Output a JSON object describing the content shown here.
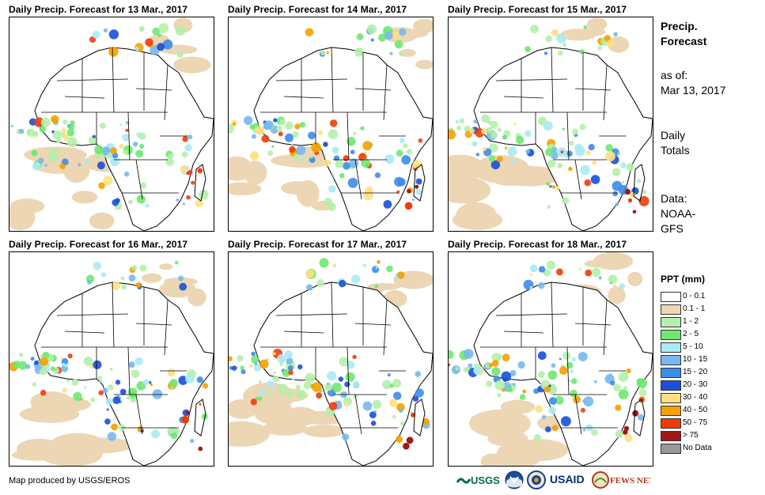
{
  "panels": [
    {
      "title": "Daily Precip. Forecast for 13 Mar., 2017"
    },
    {
      "title": "Daily Precip. Forecast for 14 Mar., 2017"
    },
    {
      "title": "Daily Precip. Forecast for 15 Mar., 2017"
    },
    {
      "title": "Daily Precip. Forecast for 16 Mar., 2017"
    },
    {
      "title": "Daily Precip. Forecast for 17 Mar., 2017"
    },
    {
      "title": "Daily Precip. Forecast for 18 Mar., 2017"
    }
  ],
  "sidebar": {
    "title_line1": "Precip.",
    "title_line2": "Forecast",
    "asof_label": "as of:",
    "asof_date": "Mar 13, 2017",
    "totals_line1": "Daily",
    "totals_line2": "Totals",
    "data_line1": "Data:",
    "data_line2": "NOAA-",
    "data_line3": "GFS"
  },
  "legend": {
    "title": "PPT (mm)",
    "items": [
      {
        "label": "0 - 0.1",
        "color": "#ffffff"
      },
      {
        "label": "0.1 - 1",
        "color": "#ecd6b4"
      },
      {
        "label": "1 - 2",
        "color": "#b4f0a8"
      },
      {
        "label": "2 - 5",
        "color": "#6ee870"
      },
      {
        "label": "5 - 10",
        "color": "#aaeaf4"
      },
      {
        "label": "10 - 15",
        "color": "#78b8f0"
      },
      {
        "label": "15 - 20",
        "color": "#3c8ce8"
      },
      {
        "label": "20 - 30",
        "color": "#1850d8"
      },
      {
        "label": "30 - 40",
        "color": "#ffe080"
      },
      {
        "label": "40 - 50",
        "color": "#f5a000"
      },
      {
        "label": "50 - 75",
        "color": "#f03c0a"
      },
      {
        "label": "> 75",
        "color": "#a01818"
      },
      {
        "label": "No Data",
        "color": "#999999"
      }
    ]
  },
  "footer": {
    "credit": "Map produced by USGS/EROS"
  },
  "logos": [
    {
      "text": "USGS",
      "color": "#006f41"
    },
    {
      "text": "NOAA",
      "color": "#1b4f9c"
    },
    {
      "text": "DOS",
      "color": "#1b3e7a"
    },
    {
      "text": "USAID",
      "color": "#002f6c"
    },
    {
      "text": "FEWS NET",
      "color": "#b5361f"
    }
  ]
}
